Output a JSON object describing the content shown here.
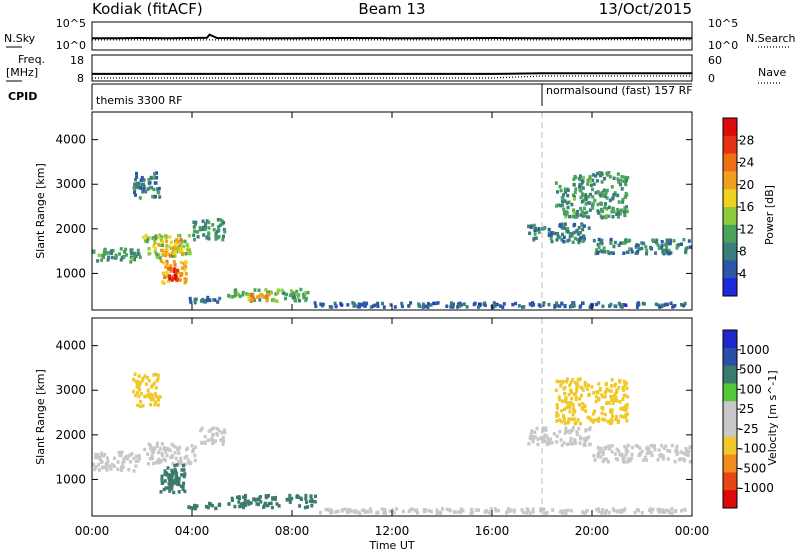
{
  "header": {
    "station": "Kodiak (fitACF)",
    "beam": "Beam 13",
    "date": "13/Oct/2015"
  },
  "colors": {
    "power_scale": [
      "#1e28dc",
      "#2d55a8",
      "#3a7d7d",
      "#4aa35a",
      "#8ecb3c",
      "#f0d21e",
      "#f0a01e",
      "#f06e14",
      "#e63214",
      "#dc0a0a"
    ],
    "velocity_scale": [
      "#1e28c8",
      "#2d4ea6",
      "#3c7a6e",
      "#55c837",
      "#c8c8c8",
      "#c8c8c8",
      "#f0c828",
      "#f08c1e",
      "#e64614",
      "#dc0a0a"
    ]
  },
  "chart_data": [
    {
      "type": "line",
      "panel": "sky-search-noise",
      "left_label": "N.Sky",
      "right_label": "N.Search",
      "left_ticks": [
        "10^5",
        "10^0"
      ],
      "right_ticks": [
        "10^5",
        "10^0"
      ],
      "x_range": [
        0,
        24
      ],
      "series": [
        {
          "name": "N.Sky",
          "style": "solid",
          "x": [
            0,
            1,
            2,
            3,
            4,
            4.6,
            4.7,
            5,
            6,
            8,
            10,
            12,
            14,
            16,
            18,
            20,
            22,
            24
          ],
          "y": [
            0.42,
            0.42,
            0.43,
            0.42,
            0.43,
            0.44,
            0.55,
            0.43,
            0.42,
            0.42,
            0.43,
            0.42,
            0.42,
            0.43,
            0.42,
            0.42,
            0.43,
            0.42
          ]
        },
        {
          "name": "N.Search",
          "style": "dotted",
          "x": [
            0,
            4,
            8,
            12,
            16,
            18,
            20,
            24
          ],
          "y": [
            0.36,
            0.36,
            0.36,
            0.36,
            0.36,
            0.36,
            0.37,
            0.36
          ]
        }
      ]
    },
    {
      "type": "line",
      "panel": "frequency-nave",
      "left_label": "Freq.",
      "left_unit": "[MHz]",
      "right_label": "Nave",
      "left_ticks": [
        18,
        8
      ],
      "right_ticks": [
        60,
        0
      ],
      "x_range": [
        0,
        24
      ],
      "series": [
        {
          "name": "Freq.",
          "style": "solid",
          "x": [
            0,
            4,
            8,
            12,
            16,
            18,
            20,
            24
          ],
          "y": [
            10,
            10,
            10,
            10,
            10,
            10.3,
            10.3,
            10.3
          ]
        },
        {
          "name": "Nave",
          "style": "dotted",
          "x": [
            0,
            4,
            8,
            12,
            16,
            18,
            20,
            24
          ],
          "y": [
            8,
            8,
            8,
            8,
            8,
            9,
            9,
            9
          ]
        }
      ]
    },
    {
      "type": "table",
      "panel": "cpid",
      "label": "CPID",
      "segments": [
        {
          "start": 0,
          "end": 18,
          "text": "themis 3300 RF"
        },
        {
          "start": 18,
          "end": 24,
          "text": "normalsound (fast) 157 RF"
        }
      ]
    },
    {
      "type": "heatmap",
      "panel": "power",
      "ylabel": "Slant Range [km]",
      "xlabel": "",
      "y_ticks": [
        1000,
        2000,
        3000,
        4000
      ],
      "ylim": [
        180,
        4620
      ],
      "x_range": [
        0,
        24
      ],
      "colorbar": {
        "label": "Power [dB]",
        "ticks": [
          4,
          8,
          12,
          16,
          20,
          24,
          28
        ],
        "range": [
          0,
          32
        ]
      },
      "echo_regions": [
        {
          "t": [
            0.0,
            2.0
          ],
          "r": [
            1220,
            1620
          ],
          "value": 10
        },
        {
          "t": [
            2.0,
            4.0
          ],
          "r": [
            1300,
            1900
          ],
          "value": 14
        },
        {
          "t": [
            4.0,
            5.4
          ],
          "r": [
            1700,
            2250
          ],
          "value": 10
        },
        {
          "t": [
            2.6,
            3.7
          ],
          "r": [
            1350,
            1800
          ],
          "value": 20
        },
        {
          "t": [
            2.7,
            3.9
          ],
          "r": [
            700,
            1320
          ],
          "value": 20
        },
        {
          "t": [
            3.0,
            3.6
          ],
          "r": [
            780,
            1150
          ],
          "value": 28
        },
        {
          "t": [
            1.6,
            2.8
          ],
          "r": [
            2650,
            3300
          ],
          "value": 8
        },
        {
          "t": [
            3.8,
            5.2
          ],
          "r": [
            300,
            500
          ],
          "value": 6
        },
        {
          "t": [
            5.4,
            8.8
          ],
          "r": [
            330,
            680
          ],
          "value": 12
        },
        {
          "t": [
            6.2,
            7.2
          ],
          "r": [
            350,
            570
          ],
          "value": 22
        },
        {
          "t": [
            8.8,
            23.8
          ],
          "r": [
            200,
            380
          ],
          "value": 6
        },
        {
          "t": [
            17.4,
            20.0
          ],
          "r": [
            1650,
            2150
          ],
          "value": 8
        },
        {
          "t": [
            20.0,
            24.0
          ],
          "r": [
            1400,
            1800
          ],
          "value": 8
        },
        {
          "t": [
            18.5,
            21.5
          ],
          "r": [
            2200,
            3300
          ],
          "value": 10
        }
      ],
      "marker_time": 18.0
    },
    {
      "type": "heatmap",
      "panel": "velocity",
      "ylabel": "Slant Range [km]",
      "xlabel": "Time UT",
      "x_ticks": [
        "00:00",
        "04:00",
        "08:00",
        "12:00",
        "16:00",
        "20:00",
        "00:00"
      ],
      "y_ticks": [
        1000,
        2000,
        3000,
        4000
      ],
      "ylim": [
        180,
        4620
      ],
      "x_range": [
        0,
        24
      ],
      "colorbar": {
        "label": "Velocity [m s^-1]",
        "ticks": [
          "1000",
          "500",
          "100",
          "25",
          "-25",
          "-100",
          "-500",
          "-1000"
        ]
      },
      "echo_regions": [
        {
          "t": [
            0.0,
            2.0
          ],
          "r": [
            1150,
            1650
          ],
          "value": 0
        },
        {
          "t": [
            2.0,
            4.2
          ],
          "r": [
            1300,
            1850
          ],
          "value": 0
        },
        {
          "t": [
            4.2,
            5.4
          ],
          "r": [
            1750,
            2200
          ],
          "value": 0
        },
        {
          "t": [
            2.7,
            3.8
          ],
          "r": [
            650,
            1380
          ],
          "value": 150
        },
        {
          "t": [
            3.0,
            3.5
          ],
          "r": [
            800,
            1200
          ],
          "value": 300
        },
        {
          "t": [
            1.6,
            2.8
          ],
          "r": [
            2600,
            3400
          ],
          "value": -200
        },
        {
          "t": [
            3.8,
            5.2
          ],
          "r": [
            300,
            500
          ],
          "value": 150
        },
        {
          "t": [
            5.4,
            9.0
          ],
          "r": [
            330,
            680
          ],
          "value": 150
        },
        {
          "t": [
            9.0,
            23.8
          ],
          "r": [
            200,
            380
          ],
          "value": 0
        },
        {
          "t": [
            17.4,
            20.0
          ],
          "r": [
            1700,
            2200
          ],
          "value": 0
        },
        {
          "t": [
            20.0,
            24.0
          ],
          "r": [
            1350,
            1800
          ],
          "value": 0
        },
        {
          "t": [
            18.5,
            21.5
          ],
          "r": [
            2200,
            3300
          ],
          "value": -150
        }
      ],
      "marker_time": 18.0
    }
  ]
}
